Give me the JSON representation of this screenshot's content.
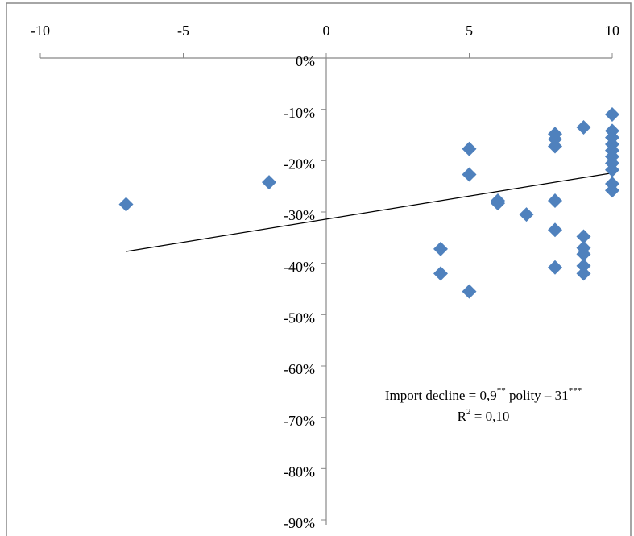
{
  "chart_data": {
    "type": "scatter",
    "color": "#4f81bd",
    "x": [
      -7,
      -2,
      4,
      4,
      5,
      5,
      5,
      6,
      6,
      7,
      8,
      8,
      8,
      8,
      8,
      8,
      9,
      9,
      9,
      9,
      9,
      9,
      10,
      10,
      10,
      10,
      10,
      10,
      10,
      10,
      10,
      10
    ],
    "values": [
      -28.5,
      -24.2,
      -37.2,
      -42,
      -17.7,
      -22.7,
      -45.5,
      -27.8,
      -28.3,
      -30.5,
      -14.8,
      -15.8,
      -17.2,
      -27.8,
      -33.5,
      -40.8,
      -13.5,
      -34.8,
      -37,
      -38.2,
      -40.5,
      -42,
      -11,
      -14.2,
      -15.5,
      -16.8,
      -18,
      -19.2,
      -20.5,
      -21.8,
      -24.5,
      -25.8
    ],
    "trendline": {
      "x": [
        -7,
        10
      ],
      "values": [
        -37.7,
        -22.4
      ],
      "color": "#000000"
    },
    "xlim": [
      -10,
      10
    ],
    "xticks": [
      -10,
      -5,
      0,
      5,
      10
    ],
    "ylim": [
      -90,
      0
    ],
    "yticks": [
      {
        "value": 0,
        "label": "0%"
      },
      {
        "value": -10,
        "label": "-10%"
      },
      {
        "value": -20,
        "label": "-20%"
      },
      {
        "value": -30,
        "label": "-30%"
      },
      {
        "value": -40,
        "label": "-40%"
      },
      {
        "value": -50,
        "label": "-50%"
      },
      {
        "value": -60,
        "label": "-60%"
      },
      {
        "value": -70,
        "label": "-70%"
      },
      {
        "value": -80,
        "label": "-80%"
      },
      {
        "value": -90,
        "label": "-90%"
      }
    ],
    "annotation": {
      "line1": [
        "Import decline = 0,9",
        "**",
        " polity – 31",
        "***"
      ],
      "line2": [
        "R",
        "2",
        " = 0,10"
      ]
    }
  }
}
